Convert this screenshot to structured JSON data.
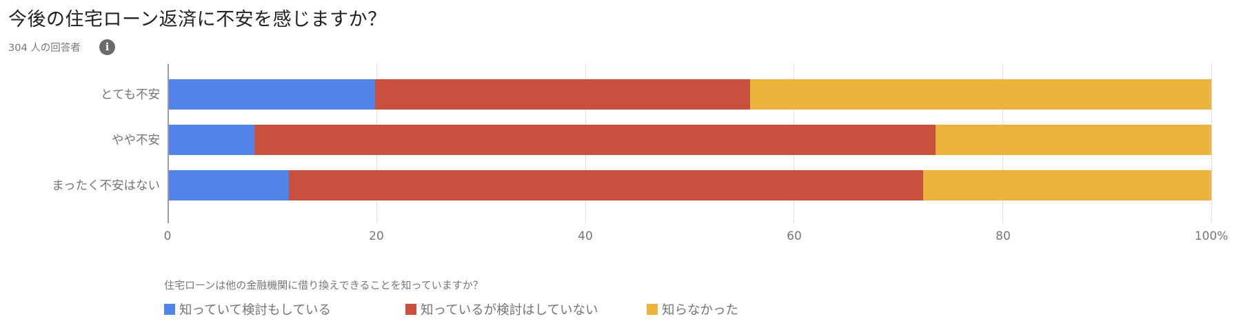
{
  "header": {
    "title": "今後の住宅ローン返済に不安を感じますか？",
    "respondents": "304 人の回答者",
    "info_icon": "info-icon"
  },
  "chart_data": {
    "type": "bar",
    "orientation": "horizontal",
    "stacked": "percent",
    "title": "今後の住宅ローン返済に不安を感じますか？",
    "subtitle": "304 人の回答者",
    "categories": [
      "とても不安",
      "やや不安",
      "まったく不安はない"
    ],
    "series": [
      {
        "name": "知っていて検討もしている",
        "color": "#5185EC",
        "values": [
          19.9,
          8.3,
          11.6
        ]
      },
      {
        "name": "知っているが検討はしていない",
        "color": "#C94F3F",
        "values": [
          35.9,
          65.3,
          60.8
        ]
      },
      {
        "name": "知らなかった",
        "color": "#EAB43D",
        "values": [
          44.2,
          26.4,
          27.6
        ]
      }
    ],
    "xlabel": "",
    "ylabel": "",
    "xlim": [
      0,
      100
    ],
    "x_ticks": [
      "0",
      "20",
      "40",
      "60",
      "80",
      "100%"
    ],
    "grid": true,
    "legend_title": "住宅ローンは他の金融機関に借り換えできることを知っていますか？",
    "legend_position": "bottom"
  },
  "axis": {
    "ticks": [
      {
        "label": "0",
        "pos": 0
      },
      {
        "label": "20",
        "pos": 20
      },
      {
        "label": "40",
        "pos": 40
      },
      {
        "label": "60",
        "pos": 60
      },
      {
        "label": "80",
        "pos": 80
      },
      {
        "label": "100%",
        "pos": 100
      }
    ]
  },
  "legend": {
    "title": "住宅ローンは他の金融機関に借り換えできることを知っていますか？",
    "items": [
      {
        "label": "知っていて検討もしている",
        "color": "#5185EC"
      },
      {
        "label": "知っているが検討はしていない",
        "color": "#C94F3F"
      },
      {
        "label": "知らなかった",
        "color": "#EAB43D"
      }
    ]
  }
}
